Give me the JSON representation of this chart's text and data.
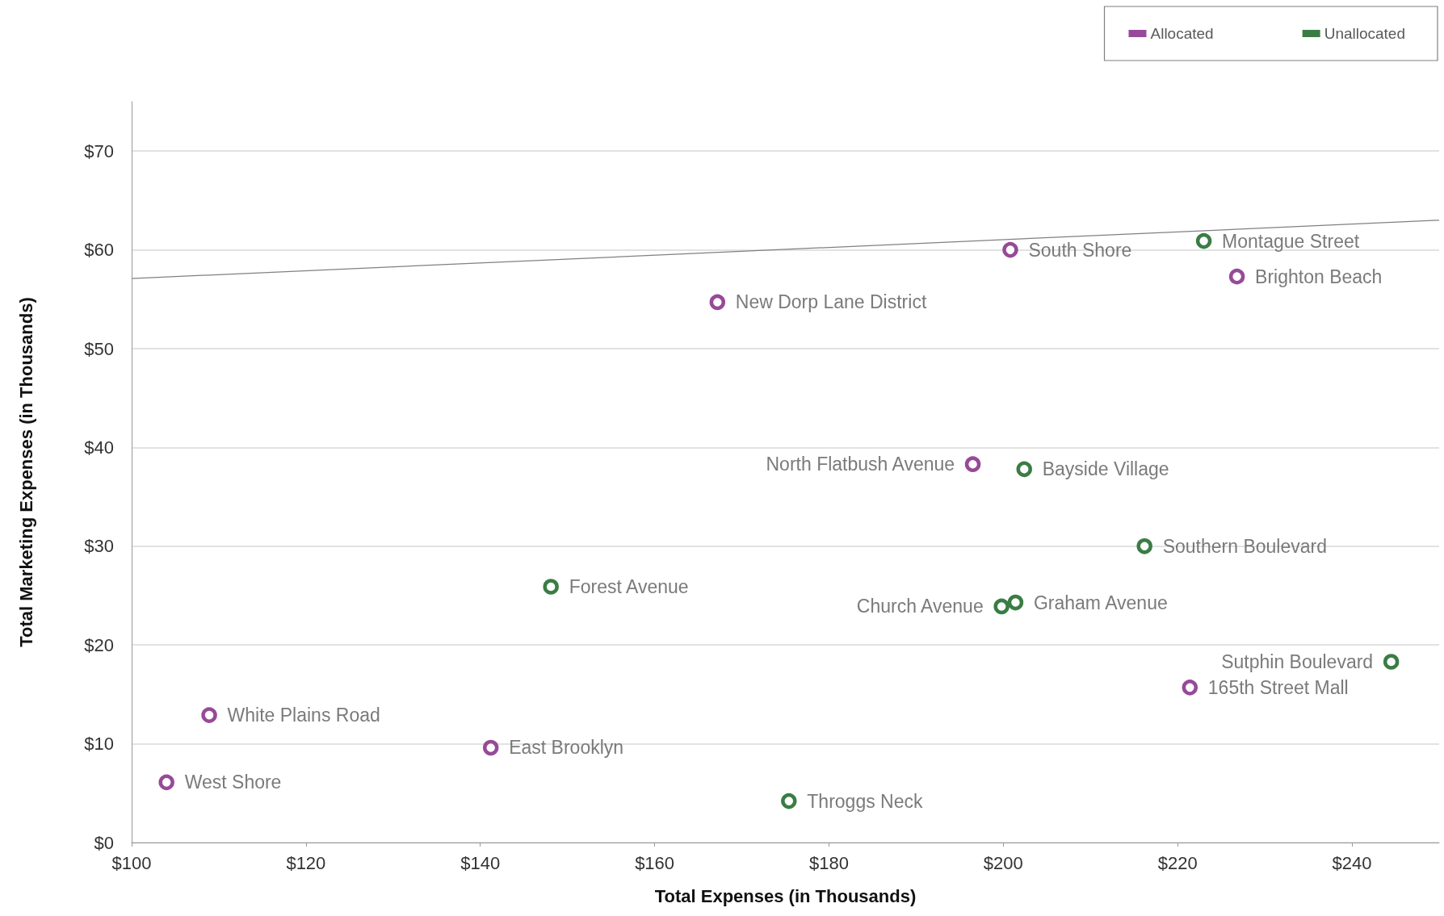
{
  "chart_data": {
    "type": "scatter",
    "xlabel": "Total Expenses (in Thousands)",
    "ylabel": "Total Marketing Expenses (in Thousands)",
    "xlim": [
      100,
      250
    ],
    "ylim": [
      0,
      75
    ],
    "xticks": [
      {
        "value": 100,
        "label": "$100"
      },
      {
        "value": 120,
        "label": "$120"
      },
      {
        "value": 140,
        "label": "$140"
      },
      {
        "value": 160,
        "label": "$160"
      },
      {
        "value": 180,
        "label": "$180"
      },
      {
        "value": 200,
        "label": "$200"
      },
      {
        "value": 220,
        "label": "$220"
      },
      {
        "value": 240,
        "label": "$240"
      }
    ],
    "yticks": [
      {
        "value": 0,
        "label": "$0"
      },
      {
        "value": 10,
        "label": "$10"
      },
      {
        "value": 20,
        "label": "$20"
      },
      {
        "value": 30,
        "label": "$30"
      },
      {
        "value": 40,
        "label": "$40"
      },
      {
        "value": 50,
        "label": "$50"
      },
      {
        "value": 60,
        "label": "$60"
      },
      {
        "value": 70,
        "label": "$70"
      }
    ],
    "grid": "y",
    "legend": "top right",
    "marker": "circle",
    "series": [
      {
        "name": "Allocated",
        "color": "#974a98",
        "x": [
          104.0,
          108.9,
          141.2,
          167.2,
          196.5,
          200.8,
          226.8,
          221.4
        ],
        "values": [
          6.1,
          12.9,
          9.6,
          54.7,
          38.3,
          60.0,
          57.3,
          15.7
        ]
      },
      {
        "name": "Unallocated",
        "color": "#3a7d44",
        "x": [
          148.1,
          175.4,
          202.4,
          199.8,
          201.4,
          216.2,
          223.0,
          244.5
        ],
        "values": [
          25.9,
          4.2,
          37.8,
          23.9,
          24.3,
          30.0,
          60.9,
          18.3
        ]
      },
      {
        "type": "line",
        "color": "#808080",
        "x": [
          100,
          250
        ],
        "values": [
          57.1,
          63.0
        ],
        "marker": "none",
        "line_style": "solid"
      }
    ],
    "annotations": [
      {
        "text": "West Shore",
        "x": 104.0,
        "y": 6.1
      },
      {
        "text": "White Plains Road",
        "x": 108.9,
        "y": 12.9
      },
      {
        "text": "East Brooklyn",
        "x": 141.2,
        "y": 9.6
      },
      {
        "text": "New Dorp Lane District",
        "x": 167.2,
        "y": 54.7
      },
      {
        "text": "North Flatbush Avenue",
        "x": 196.5,
        "y": 38.3
      },
      {
        "text": "South Shore",
        "x": 200.8,
        "y": 60.0
      },
      {
        "text": "Brighton Beach",
        "x": 226.8,
        "y": 57.3
      },
      {
        "text": "165th Street Mall",
        "x": 221.4,
        "y": 15.7
      },
      {
        "text": "Forest Avenue",
        "x": 148.1,
        "y": 25.9
      },
      {
        "text": "Throggs Neck",
        "x": 175.4,
        "y": 4.2
      },
      {
        "text": "Bayside Village",
        "x": 202.4,
        "y": 37.8
      },
      {
        "text": "Church Avenue",
        "x": 199.8,
        "y": 23.9
      },
      {
        "text": "Graham Avenue",
        "x": 201.4,
        "y": 24.3
      },
      {
        "text": "Southern Boulevard",
        "x": 216.2,
        "y": 30.0
      },
      {
        "text": "Montague Street",
        "x": 223.0,
        "y": 60.9
      },
      {
        "text": "Sutphin Boulevard",
        "x": 244.5,
        "y": 18.3
      }
    ]
  }
}
